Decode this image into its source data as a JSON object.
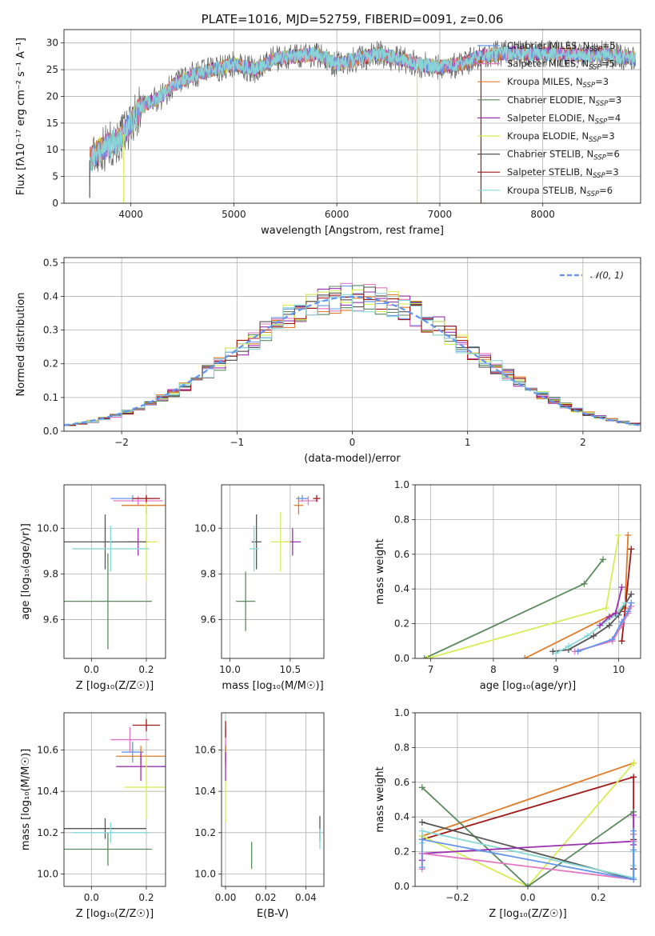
{
  "colors": {
    "chabrier_miles": "#6495ed",
    "salpeter_miles": "#e377c2",
    "kroupa_miles": "#e07b27",
    "chabrier_elodie": "#5b8a5e",
    "salpeter_elodie": "#9b30b0",
    "kroupa_elodie": "#d4ee55",
    "chabrier_stelib": "#555555",
    "salpeter_stelib": "#a01818",
    "kroupa_stelib": "#88d8d8"
  },
  "chart_data": [
    {
      "id": "spectrum",
      "type": "line",
      "title": "PLATE=1016, MJD=52759, FIBERID=0091, z=0.06",
      "xlabel": "wavelength [Angstrom, rest frame]",
      "ylabel": "Flux [fλ10⁻¹⁷ erg cm⁻² s⁻¹ A⁻¹]",
      "xlim": [
        3350,
        8950
      ],
      "ylim": [
        0,
        32.5
      ],
      "xticks": [
        "4000",
        "5000",
        "6000",
        "7000",
        "8000"
      ],
      "yticks": [
        "0",
        "5",
        "10",
        "15",
        "20",
        "25",
        "30"
      ],
      "continuum_x": [
        3600,
        3700,
        3800,
        3900,
        4000,
        4100,
        4200,
        4300,
        4400,
        4500,
        4600,
        4800,
        5000,
        5200,
        5400,
        5600,
        5800,
        6000,
        6200,
        6400,
        6600,
        6800,
        7000,
        7200,
        7400,
        7600,
        7800,
        8000,
        8200,
        8400,
        8600,
        8900
      ],
      "continuum_y": [
        8,
        10,
        11,
        12,
        15,
        18,
        19,
        20,
        22,
        23,
        24,
        25,
        26,
        25,
        27,
        27.5,
        28,
        26,
        27,
        28,
        27,
        26,
        25.5,
        26,
        27.5,
        28,
        28,
        28,
        28,
        27.5,
        28,
        27
      ],
      "legend": [
        {
          "label": "Chabrier MILES, N",
          "sub": "SSP",
          "value": "=5",
          "color_key": "chabrier_miles"
        },
        {
          "label": "Salpeter MILES, N",
          "sub": "SSP",
          "value": "=5",
          "color_key": "salpeter_miles"
        },
        {
          "label": "Kroupa MILES, N",
          "sub": "SSP",
          "value": "=3",
          "color_key": "kroupa_miles"
        },
        {
          "label": "Chabrier ELODIE, N",
          "sub": "SSP",
          "value": "=3",
          "color_key": "chabrier_elodie"
        },
        {
          "label": "Salpeter ELODIE, N",
          "sub": "SSP",
          "value": "=4",
          "color_key": "salpeter_elodie"
        },
        {
          "label": "Kroupa ELODIE, N",
          "sub": "SSP",
          "value": "=3",
          "color_key": "kroupa_elodie"
        },
        {
          "label": "Chabrier STELIB, N",
          "sub": "SSP",
          "value": "=6",
          "color_key": "chabrier_stelib"
        },
        {
          "label": "Salpeter STELIB, N",
          "sub": "SSP",
          "value": "=3",
          "color_key": "salpeter_stelib"
        },
        {
          "label": "Kroupa STELIB, N",
          "sub": "SSP",
          "value": "=6",
          "color_key": "kroupa_stelib"
        }
      ]
    },
    {
      "id": "residuals",
      "type": "line",
      "xlabel": "(data-model)/error",
      "ylabel": "Normed distribution",
      "xlim": [
        -2.5,
        2.5
      ],
      "ylim": [
        0,
        0.515
      ],
      "xticks": [
        "−2",
        "−1",
        "0",
        "1",
        "2"
      ],
      "yticks": [
        "0.0",
        "0.1",
        "0.2",
        "0.3",
        "0.4",
        "0.5"
      ],
      "legend_label": "𝒩(0, 1)",
      "curve_color": "#6495ed",
      "bin_width": 0.1
    },
    {
      "id": "age_vs_z",
      "type": "scatter",
      "xlabel": "Z [log₁₀(Z/Z☉)]",
      "ylabel": "age  [log₁₀(age/yr)]",
      "xlim": [
        -0.1,
        0.27
      ],
      "ylim": [
        9.43,
        10.19
      ],
      "xticks": [
        "0.0",
        "0.2"
      ],
      "yticks": [
        "9.6",
        "9.8",
        "10.0"
      ],
      "points": [
        {
          "x": 0.15,
          "y": 10.13,
          "xerr": 0.08,
          "yerr": 0.015,
          "color_key": "chabrier_miles"
        },
        {
          "x": 0.17,
          "y": 10.12,
          "xerr": 0.09,
          "yerr": 0.02,
          "color_key": "salpeter_miles"
        },
        {
          "x": 0.2,
          "y": 10.1,
          "xerr": 0.09,
          "yerr": 0.04,
          "color_key": "kroupa_miles"
        },
        {
          "x": 0.06,
          "y": 9.68,
          "xerr": 0.16,
          "yerr": 0.21,
          "color_key": "chabrier_elodie"
        },
        {
          "x": 0.17,
          "y": 9.94,
          "xerr": 0.04,
          "yerr": 0.06,
          "color_key": "salpeter_elodie"
        },
        {
          "x": 0.2,
          "y": 9.94,
          "xerr": 0.04,
          "yerr": 0.17,
          "color_key": "kroupa_elodie"
        },
        {
          "x": 0.05,
          "y": 9.94,
          "xerr": 0.15,
          "yerr": 0.12,
          "color_key": "chabrier_stelib"
        },
        {
          "x": 0.2,
          "y": 10.13,
          "xerr": 0.05,
          "yerr": 0.015,
          "color_key": "salpeter_stelib"
        },
        {
          "x": 0.07,
          "y": 9.91,
          "xerr": 0.14,
          "yerr": 0.1,
          "color_key": "kroupa_stelib"
        }
      ]
    },
    {
      "id": "age_vs_mass",
      "type": "scatter",
      "xlabel": "mass [log₁₀(M/M☉)]",
      "ylabel": "",
      "xlim": [
        9.93,
        10.78
      ],
      "ylim": [
        9.43,
        10.19
      ],
      "xticks": [
        "10.0",
        "10.5"
      ],
      "yticks": [
        "9.6",
        "9.8",
        "10.0"
      ],
      "points": [
        {
          "x": 10.6,
          "y": 10.13,
          "xerr": 0.05,
          "yerr": 0.015,
          "color_key": "chabrier_miles"
        },
        {
          "x": 10.65,
          "y": 10.12,
          "xerr": 0.08,
          "yerr": 0.02,
          "color_key": "salpeter_miles"
        },
        {
          "x": 10.57,
          "y": 10.1,
          "xerr": 0.04,
          "yerr": 0.04,
          "color_key": "kroupa_miles"
        },
        {
          "x": 10.13,
          "y": 9.68,
          "xerr": 0.08,
          "yerr": 0.13,
          "color_key": "chabrier_elodie"
        },
        {
          "x": 10.52,
          "y": 9.94,
          "xerr": 0.07,
          "yerr": 0.06,
          "color_key": "salpeter_elodie"
        },
        {
          "x": 10.42,
          "y": 9.94,
          "xerr": 0.08,
          "yerr": 0.13,
          "color_key": "kroupa_elodie"
        },
        {
          "x": 10.22,
          "y": 9.94,
          "xerr": 0.04,
          "yerr": 0.12,
          "color_key": "chabrier_stelib"
        },
        {
          "x": 10.72,
          "y": 10.13,
          "xerr": 0.03,
          "yerr": 0.015,
          "color_key": "salpeter_stelib"
        },
        {
          "x": 10.2,
          "y": 9.91,
          "xerr": 0.04,
          "yerr": 0.1,
          "color_key": "kroupa_stelib"
        }
      ]
    },
    {
      "id": "weight_vs_age",
      "type": "line",
      "xlabel": "age  [log₁₀(age/yr)]",
      "ylabel": "mass weight",
      "xlim": [
        6.75,
        10.35
      ],
      "ylim": [
        0,
        1
      ],
      "xticks": [
        "7",
        "8",
        "9",
        "10"
      ],
      "yticks": [
        "0.0",
        "0.2",
        "0.4",
        "0.6",
        "0.8",
        "1.0"
      ],
      "series": [
        {
          "color_key": "chabrier_elodie",
          "x": [
            6.9,
            9.45,
            9.75
          ],
          "y": [
            0.0,
            0.43,
            0.57
          ]
        },
        {
          "color_key": "kroupa_elodie",
          "x": [
            6.95,
            9.8,
            10.0
          ],
          "y": [
            0.0,
            0.29,
            0.71
          ]
        },
        {
          "color_key": "kroupa_miles",
          "x": [
            8.5,
            10.1,
            10.15
          ],
          "y": [
            0.0,
            0.29,
            0.71
          ]
        },
        {
          "color_key": "salpeter_stelib",
          "x": [
            10.05,
            10.1,
            10.2
          ],
          "y": [
            0.1,
            0.27,
            0.63
          ]
        },
        {
          "color_key": "chabrier_stelib",
          "x": [
            8.95,
            9.2,
            9.6,
            9.85,
            10.0,
            10.2
          ],
          "y": [
            0.04,
            0.05,
            0.13,
            0.19,
            0.25,
            0.37
          ]
        },
        {
          "color_key": "kroupa_stelib",
          "x": [
            9.0,
            9.2,
            9.5,
            9.75,
            9.95,
            10.1
          ],
          "y": [
            0.03,
            0.07,
            0.13,
            0.2,
            0.25,
            0.32
          ]
        },
        {
          "color_key": "salpeter_elodie",
          "x": [
            9.7,
            9.85,
            9.95,
            10.05
          ],
          "y": [
            0.19,
            0.24,
            0.26,
            0.41
          ]
        },
        {
          "color_key": "salpeter_miles",
          "x": [
            9.3,
            9.9,
            10.05,
            10.15,
            10.2
          ],
          "y": [
            0.04,
            0.1,
            0.19,
            0.26,
            0.3
          ]
        },
        {
          "color_key": "chabrier_miles",
          "x": [
            9.35,
            9.9,
            10.05,
            10.15,
            10.2
          ],
          "y": [
            0.04,
            0.11,
            0.21,
            0.27,
            0.32
          ]
        }
      ]
    },
    {
      "id": "mass_vs_z",
      "type": "scatter",
      "xlabel": "Z [log₁₀(Z/Z☉)]",
      "ylabel": "mass [log₁₀(M/M☉)]",
      "xlim": [
        -0.1,
        0.27
      ],
      "ylim": [
        9.94,
        10.78
      ],
      "xticks": [
        "0.0",
        "0.2"
      ],
      "yticks": [
        "10.0",
        "10.2",
        "10.4",
        "10.6"
      ],
      "points": [
        {
          "x": 0.15,
          "y": 10.59,
          "xerr": 0.04,
          "yerr": 0.05,
          "color_key": "chabrier_miles"
        },
        {
          "x": 0.14,
          "y": 10.65,
          "xerr": 0.07,
          "yerr": 0.06,
          "color_key": "salpeter_miles"
        },
        {
          "x": 0.18,
          "y": 10.57,
          "xerr": 0.09,
          "yerr": 0.05,
          "color_key": "kroupa_miles"
        },
        {
          "x": 0.06,
          "y": 10.12,
          "xerr": 0.16,
          "yerr": 0.08,
          "color_key": "chabrier_elodie"
        },
        {
          "x": 0.18,
          "y": 10.52,
          "xerr": 0.09,
          "yerr": 0.07,
          "color_key": "salpeter_elodie"
        },
        {
          "x": 0.2,
          "y": 10.42,
          "xerr": 0.08,
          "yerr": 0.15,
          "color_key": "kroupa_elodie"
        },
        {
          "x": 0.05,
          "y": 10.22,
          "xerr": 0.15,
          "yerr": 0.05,
          "color_key": "chabrier_stelib"
        },
        {
          "x": 0.2,
          "y": 10.72,
          "xerr": 0.05,
          "yerr": 0.03,
          "color_key": "salpeter_stelib"
        },
        {
          "x": 0.07,
          "y": 10.2,
          "xerr": 0.14,
          "yerr": 0.05,
          "color_key": "kroupa_stelib"
        }
      ]
    },
    {
      "id": "mass_vs_ebv",
      "type": "scatter",
      "xlabel": "E(B-V)",
      "ylabel": "",
      "xlim": [
        -0.002,
        0.049
      ],
      "ylim": [
        9.94,
        10.78
      ],
      "xticks": [
        "0.00",
        "0.02",
        "0.04"
      ],
      "yticks": [
        "10.0",
        "10.2",
        "10.4",
        "10.6"
      ],
      "points": [
        {
          "x": 0.0,
          "y": 10.59,
          "xerr": 0.0,
          "yerr": 0.05,
          "color_key": "chabrier_miles"
        },
        {
          "x": 0.0,
          "y": 10.65,
          "xerr": 0.0,
          "yerr": 0.06,
          "color_key": "salpeter_miles"
        },
        {
          "x": 0.0,
          "y": 10.57,
          "xerr": 0.0,
          "yerr": 0.05,
          "color_key": "kroupa_miles"
        },
        {
          "x": 0.013,
          "y": 10.09,
          "xerr": 0.0,
          "yerr": 0.065,
          "color_key": "chabrier_elodie"
        },
        {
          "x": 0.0,
          "y": 10.52,
          "xerr": 0.0,
          "yerr": 0.07,
          "color_key": "salpeter_elodie"
        },
        {
          "x": 0.0,
          "y": 10.35,
          "xerr": 0.0,
          "yerr": 0.1,
          "color_key": "kroupa_elodie"
        },
        {
          "x": 0.047,
          "y": 10.22,
          "xerr": 0.0,
          "yerr": 0.06,
          "color_key": "chabrier_stelib"
        },
        {
          "x": 0.0,
          "y": 10.7,
          "xerr": 0.0,
          "yerr": 0.04,
          "color_key": "salpeter_stelib"
        },
        {
          "x": 0.047,
          "y": 10.17,
          "xerr": 0.0,
          "yerr": 0.05,
          "color_key": "kroupa_stelib"
        }
      ]
    },
    {
      "id": "weight_vs_z",
      "type": "line",
      "xlabel": "Z [log₁₀(Z/Z☉)]",
      "ylabel": "mass weight",
      "xlim": [
        -0.32,
        0.32
      ],
      "ylim": [
        0,
        1
      ],
      "xticks": [
        "−0.2",
        "0.0",
        "0.2"
      ],
      "yticks": [
        "0.0",
        "0.2",
        "0.4",
        "0.6",
        "0.8",
        "1.0"
      ],
      "series": [
        {
          "color_key": "kroupa_miles",
          "x": [
            -0.3,
            0.3
          ],
          "y": [
            0.29,
            0.71
          ]
        },
        {
          "color_key": "salpeter_stelib",
          "x": [
            -0.3,
            0.3,
            0.3,
            0.3
          ],
          "y": [
            0.27,
            0.63,
            0.27,
            0.1
          ]
        },
        {
          "color_key": "kroupa_elodie",
          "x": [
            -0.3,
            0.0,
            0.3
          ],
          "y": [
            0.29,
            0.0,
            0.71
          ]
        },
        {
          "color_key": "chabrier_elodie",
          "x": [
            -0.3,
            0.0,
            0.3
          ],
          "y": [
            0.57,
            0.0,
            0.43
          ]
        },
        {
          "color_key": "chabrier_stelib",
          "x": [
            -0.3,
            0.3,
            0.3,
            0.3
          ],
          "y": [
            0.37,
            0.04,
            0.1,
            0.3
          ]
        },
        {
          "color_key": "kroupa_stelib",
          "x": [
            -0.3,
            -0.3,
            0.3,
            0.3,
            0.3
          ],
          "y": [
            0.25,
            0.32,
            0.05,
            0.12,
            0.2
          ]
        },
        {
          "color_key": "salpeter_elodie",
          "x": [
            -0.3,
            -0.3,
            0.3,
            0.3,
            0.3
          ],
          "y": [
            0.15,
            0.19,
            0.26,
            0.24,
            0.41
          ]
        },
        {
          "color_key": "salpeter_miles",
          "x": [
            -0.3,
            -0.3,
            0.3,
            0.3,
            0.3
          ],
          "y": [
            0.1,
            0.19,
            0.04,
            0.26,
            0.3
          ]
        },
        {
          "color_key": "chabrier_miles",
          "x": [
            -0.3,
            -0.3,
            0.3,
            0.3,
            0.3
          ],
          "y": [
            0.11,
            0.27,
            0.04,
            0.21,
            0.32
          ]
        }
      ]
    }
  ]
}
